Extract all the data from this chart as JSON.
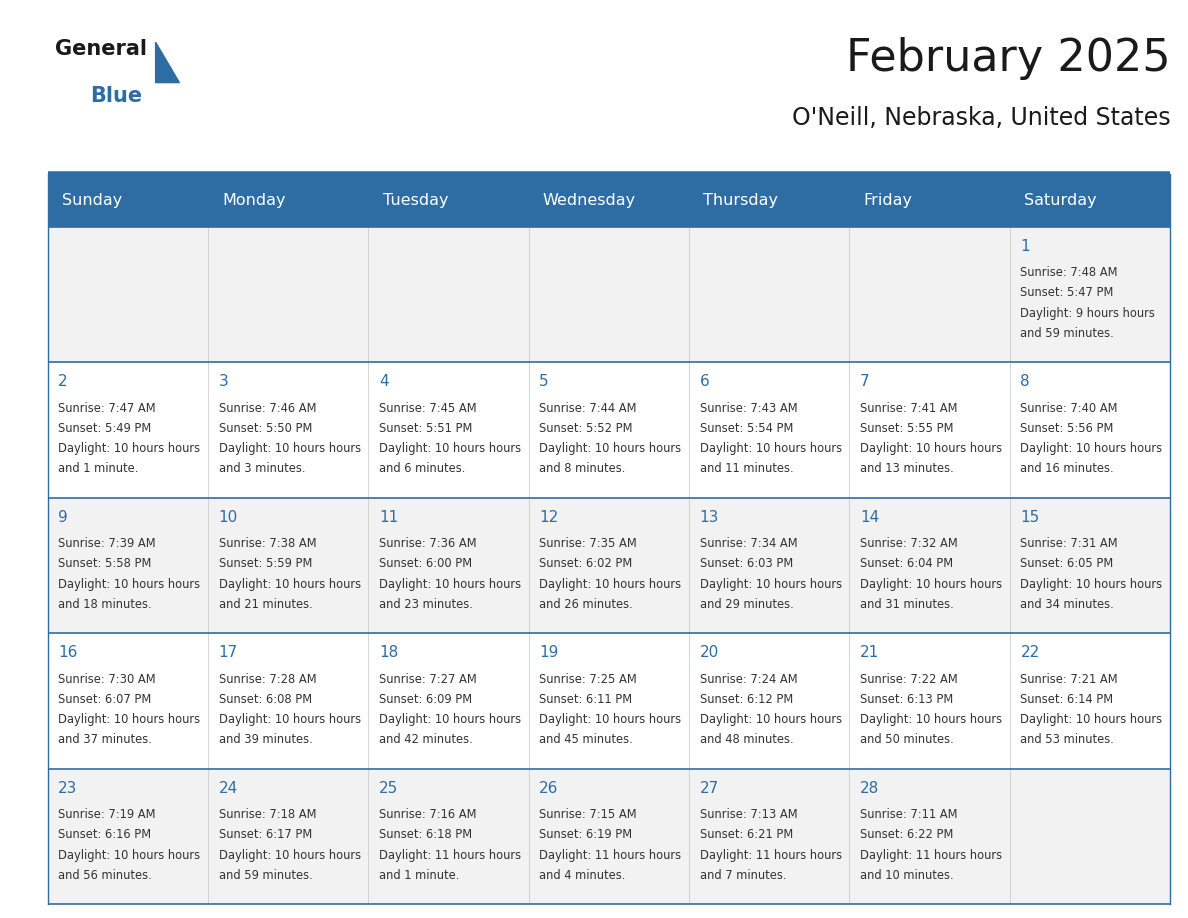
{
  "title": "February 2025",
  "subtitle": "O'Neill, Nebraska, United States",
  "header_bg_color": "#2E6DA4",
  "header_text_color": "#FFFFFF",
  "day_names": [
    "Sunday",
    "Monday",
    "Tuesday",
    "Wednesday",
    "Thursday",
    "Friday",
    "Saturday"
  ],
  "cell_bg_color": "#F2F2F2",
  "cell_bg_alt": "#FFFFFF",
  "date_color": "#2E6DA4",
  "text_color": "#333333",
  "border_color": "#2E6DA4",
  "logo_color1": "#1a1a1a",
  "logo_color2": "#2E6DA4",
  "calendar_data": [
    [
      null,
      null,
      null,
      null,
      null,
      null,
      {
        "day": 1,
        "sunrise": "7:48 AM",
        "sunset": "5:47 PM",
        "daylight": "9 hours and 59 minutes."
      }
    ],
    [
      {
        "day": 2,
        "sunrise": "7:47 AM",
        "sunset": "5:49 PM",
        "daylight": "10 hours and 1 minute."
      },
      {
        "day": 3,
        "sunrise": "7:46 AM",
        "sunset": "5:50 PM",
        "daylight": "10 hours and 3 minutes."
      },
      {
        "day": 4,
        "sunrise": "7:45 AM",
        "sunset": "5:51 PM",
        "daylight": "10 hours and 6 minutes."
      },
      {
        "day": 5,
        "sunrise": "7:44 AM",
        "sunset": "5:52 PM",
        "daylight": "10 hours and 8 minutes."
      },
      {
        "day": 6,
        "sunrise": "7:43 AM",
        "sunset": "5:54 PM",
        "daylight": "10 hours and 11 minutes."
      },
      {
        "day": 7,
        "sunrise": "7:41 AM",
        "sunset": "5:55 PM",
        "daylight": "10 hours and 13 minutes."
      },
      {
        "day": 8,
        "sunrise": "7:40 AM",
        "sunset": "5:56 PM",
        "daylight": "10 hours and 16 minutes."
      }
    ],
    [
      {
        "day": 9,
        "sunrise": "7:39 AM",
        "sunset": "5:58 PM",
        "daylight": "10 hours and 18 minutes."
      },
      {
        "day": 10,
        "sunrise": "7:38 AM",
        "sunset": "5:59 PM",
        "daylight": "10 hours and 21 minutes."
      },
      {
        "day": 11,
        "sunrise": "7:36 AM",
        "sunset": "6:00 PM",
        "daylight": "10 hours and 23 minutes."
      },
      {
        "day": 12,
        "sunrise": "7:35 AM",
        "sunset": "6:02 PM",
        "daylight": "10 hours and 26 minutes."
      },
      {
        "day": 13,
        "sunrise": "7:34 AM",
        "sunset": "6:03 PM",
        "daylight": "10 hours and 29 minutes."
      },
      {
        "day": 14,
        "sunrise": "7:32 AM",
        "sunset": "6:04 PM",
        "daylight": "10 hours and 31 minutes."
      },
      {
        "day": 15,
        "sunrise": "7:31 AM",
        "sunset": "6:05 PM",
        "daylight": "10 hours and 34 minutes."
      }
    ],
    [
      {
        "day": 16,
        "sunrise": "7:30 AM",
        "sunset": "6:07 PM",
        "daylight": "10 hours and 37 minutes."
      },
      {
        "day": 17,
        "sunrise": "7:28 AM",
        "sunset": "6:08 PM",
        "daylight": "10 hours and 39 minutes."
      },
      {
        "day": 18,
        "sunrise": "7:27 AM",
        "sunset": "6:09 PM",
        "daylight": "10 hours and 42 minutes."
      },
      {
        "day": 19,
        "sunrise": "7:25 AM",
        "sunset": "6:11 PM",
        "daylight": "10 hours and 45 minutes."
      },
      {
        "day": 20,
        "sunrise": "7:24 AM",
        "sunset": "6:12 PM",
        "daylight": "10 hours and 48 minutes."
      },
      {
        "day": 21,
        "sunrise": "7:22 AM",
        "sunset": "6:13 PM",
        "daylight": "10 hours and 50 minutes."
      },
      {
        "day": 22,
        "sunrise": "7:21 AM",
        "sunset": "6:14 PM",
        "daylight": "10 hours and 53 minutes."
      }
    ],
    [
      {
        "day": 23,
        "sunrise": "7:19 AM",
        "sunset": "6:16 PM",
        "daylight": "10 hours and 56 minutes."
      },
      {
        "day": 24,
        "sunrise": "7:18 AM",
        "sunset": "6:17 PM",
        "daylight": "10 hours and 59 minutes."
      },
      {
        "day": 25,
        "sunrise": "7:16 AM",
        "sunset": "6:18 PM",
        "daylight": "11 hours and 1 minute."
      },
      {
        "day": 26,
        "sunrise": "7:15 AM",
        "sunset": "6:19 PM",
        "daylight": "11 hours and 4 minutes."
      },
      {
        "day": 27,
        "sunrise": "7:13 AM",
        "sunset": "6:21 PM",
        "daylight": "11 hours and 7 minutes."
      },
      {
        "day": 28,
        "sunrise": "7:11 AM",
        "sunset": "6:22 PM",
        "daylight": "11 hours and 10 minutes."
      },
      null
    ]
  ]
}
